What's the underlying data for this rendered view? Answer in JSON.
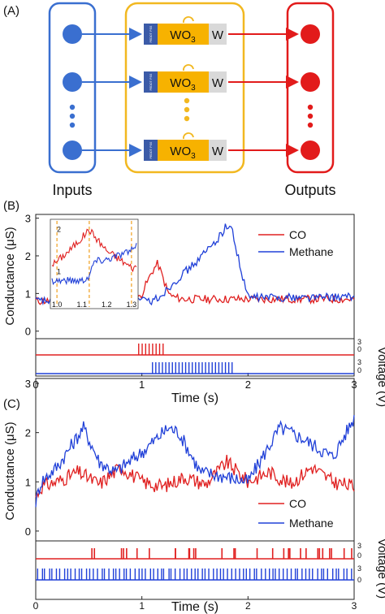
{
  "colors": {
    "input_blue": "#3a6fd0",
    "device_box": "#f2b820",
    "output_red": "#e21b1b",
    "wo3": "#f7b200",
    "pedot": "#3b5ba8",
    "w_gray": "#d9d9d9",
    "co": "#e02020",
    "methane": "#2040d8"
  },
  "panelA": {
    "label": "(A)",
    "inputs_label": "Inputs",
    "outputs_label": "Outputs",
    "device": {
      "material": "WO",
      "subscript": "3",
      "electrode": "W",
      "pedot_label": "PEDOT: PSS"
    }
  },
  "panelB": {
    "label": "(B)",
    "ylabel": "Conductance (μS)",
    "xlabel": "Time (s)",
    "voltage_label": "Voltage (V)",
    "yticks": [
      "0",
      "1",
      "2",
      "3"
    ],
    "xticks": [
      "0",
      "1",
      "2",
      "3"
    ],
    "voltage_ticks": [
      "3",
      "0",
      "3",
      "0"
    ],
    "legend": [
      "CO",
      "Methane"
    ],
    "inset": {
      "xticks": [
        "1.0",
        "1.1",
        "1.2",
        "1.3"
      ],
      "yticks": [
        "1",
        "2"
      ]
    }
  },
  "panelC": {
    "label": "(C)",
    "ylabel": "Conductance (μS)",
    "xlabel": "Time (s)",
    "voltage_label": "Voltage (V)",
    "yticks": [
      "0",
      "1",
      "2",
      "3"
    ],
    "xticks": [
      "0",
      "1",
      "2",
      "3"
    ],
    "voltage_ticks": [
      "3",
      "0",
      "3",
      "0"
    ],
    "legend": [
      "CO",
      "Methane"
    ]
  },
  "chart_data": [
    {
      "type": "line",
      "xlabel": "Time (s)",
      "ylabel": "Conductance (μS)",
      "xlim": [
        0,
        3
      ],
      "ylim": [
        -0.2,
        3.1
      ],
      "series": [
        {
          "name": "CO",
          "x": [
            0,
            0.95,
            1.0,
            1.05,
            1.1,
            1.15,
            1.2,
            1.25,
            1.3,
            1.4,
            2.0,
            3.0
          ],
          "values": [
            0.8,
            0.8,
            1.0,
            1.3,
            1.6,
            1.8,
            1.4,
            1.0,
            0.9,
            0.85,
            0.85,
            0.85
          ]
        },
        {
          "name": "Methane",
          "x": [
            0,
            1.1,
            1.2,
            1.3,
            1.5,
            1.7,
            1.8,
            1.85,
            1.95,
            2.0,
            3.0
          ],
          "values": [
            0.8,
            0.8,
            1.0,
            1.3,
            1.8,
            2.4,
            2.8,
            2.7,
            1.4,
            0.9,
            0.9
          ]
        }
      ],
      "voltage_pulses": {
        "CO": {
          "start": 0.97,
          "end": 1.2,
          "count": 8,
          "amplitude": 3
        },
        "Methane": {
          "start": 1.1,
          "end": 1.85,
          "count": 25,
          "amplitude": 3
        }
      },
      "inset": {
        "xlim": [
          0.98,
          1.32
        ],
        "ylim": [
          0.4,
          2.2
        ],
        "guides_x": [
          1.0,
          1.13,
          1.3
        ],
        "series": [
          {
            "name": "CO",
            "x": [
              0.99,
              1.05,
              1.1,
              1.13,
              1.15,
              1.2,
              1.25,
              1.3,
              1.32
            ],
            "values": [
              1.2,
              1.5,
              1.8,
              2.0,
              1.85,
              1.5,
              1.3,
              1.1,
              1.1
            ]
          },
          {
            "name": "Methane",
            "x": [
              0.99,
              1.05,
              1.1,
              1.13,
              1.15,
              1.2,
              1.25,
              1.3,
              1.32
            ],
            "values": [
              0.8,
              0.8,
              0.8,
              0.9,
              1.25,
              1.3,
              1.4,
              1.5,
              1.6
            ]
          }
        ]
      }
    },
    {
      "type": "line",
      "xlabel": "Time (s)",
      "ylabel": "Conductance (μS)",
      "xlim": [
        0,
        3
      ],
      "ylim": [
        -0.2,
        3.1
      ],
      "series": [
        {
          "name": "CO",
          "x": [
            0,
            0.05,
            0.2,
            0.4,
            0.6,
            0.8,
            1.0,
            1.2,
            1.4,
            1.6,
            1.8,
            2.0,
            2.2,
            2.4,
            2.6,
            2.8,
            3.0
          ],
          "values": [
            0.7,
            0.9,
            1.0,
            1.2,
            0.95,
            1.3,
            1.0,
            0.9,
            1.1,
            0.95,
            1.4,
            1.0,
            1.2,
            0.95,
            1.3,
            1.0,
            0.9
          ]
        },
        {
          "name": "Methane",
          "x": [
            0,
            0.05,
            0.2,
            0.45,
            0.6,
            0.75,
            1.0,
            1.25,
            1.35,
            1.55,
            1.8,
            2.0,
            2.3,
            2.5,
            2.8,
            3.0
          ],
          "values": [
            0.6,
            1.0,
            1.3,
            2.1,
            1.4,
            1.2,
            1.6,
            2.1,
            2.0,
            1.2,
            1.1,
            1.0,
            2.1,
            1.9,
            1.5,
            2.3
          ]
        }
      ],
      "voltage_pulses": {
        "CO": {
          "count": 30,
          "amplitude": 3
        },
        "Methane": {
          "count": 85,
          "amplitude": 3
        }
      }
    }
  ]
}
